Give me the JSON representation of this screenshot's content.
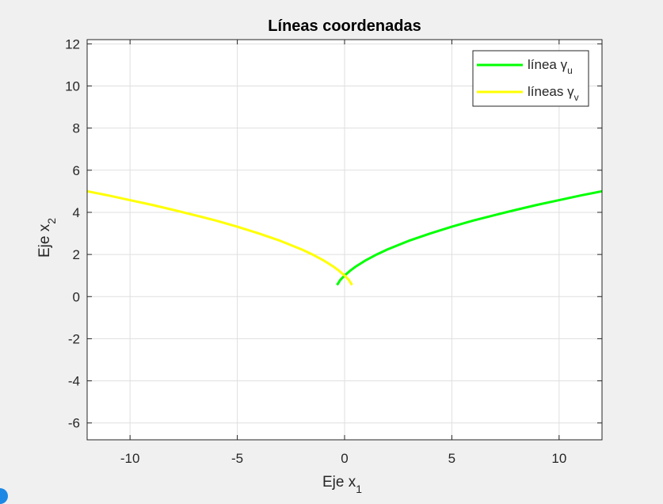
{
  "chart_data": {
    "type": "line",
    "title": "Líneas coordenadas",
    "xlabel": {
      "base": "Eje x",
      "sub": "1"
    },
    "ylabel": {
      "base": "Eje x",
      "sub": "2"
    },
    "xlim": [
      -12,
      12
    ],
    "ylim": [
      -6.8,
      12.2
    ],
    "xticks": [
      -10,
      -5,
      0,
      5,
      10
    ],
    "yticks": [
      -6,
      -4,
      -2,
      0,
      2,
      4,
      6,
      8,
      10,
      12
    ],
    "xtick_labels": [
      "-10",
      "-5",
      "0",
      "5",
      "10"
    ],
    "ytick_labels": [
      "-6",
      "-4",
      "-2",
      "0",
      "2",
      "4",
      "6",
      "8",
      "10",
      "12"
    ],
    "grid": true,
    "legend_position": "top-right",
    "series": [
      {
        "name": {
          "base": "línea γ",
          "sub": "u"
        },
        "color": "#00ff00",
        "x": [
          -0.35,
          -0.2,
          0,
          0.25,
          0.5,
          1,
          1.5,
          2,
          3,
          4,
          5,
          6,
          7,
          8,
          9,
          10,
          11,
          12
        ],
        "y": [
          0.55,
          0.79,
          1.0,
          1.22,
          1.41,
          1.73,
          2.0,
          2.24,
          2.65,
          3.0,
          3.32,
          3.61,
          3.87,
          4.12,
          4.36,
          4.58,
          4.8,
          5.0
        ]
      },
      {
        "name": {
          "base": "líneas γ",
          "sub": "v"
        },
        "color": "#ffff00",
        "x": [
          0.35,
          0.2,
          0,
          -0.25,
          -0.5,
          -1,
          -1.5,
          -2,
          -3,
          -4,
          -5,
          -6,
          -7,
          -8,
          -9,
          -10,
          -11,
          -12
        ],
        "y": [
          0.55,
          0.79,
          1.0,
          1.22,
          1.41,
          1.73,
          2.0,
          2.24,
          2.65,
          3.0,
          3.32,
          3.61,
          3.87,
          4.12,
          4.36,
          4.58,
          4.8,
          5.0
        ]
      }
    ]
  }
}
